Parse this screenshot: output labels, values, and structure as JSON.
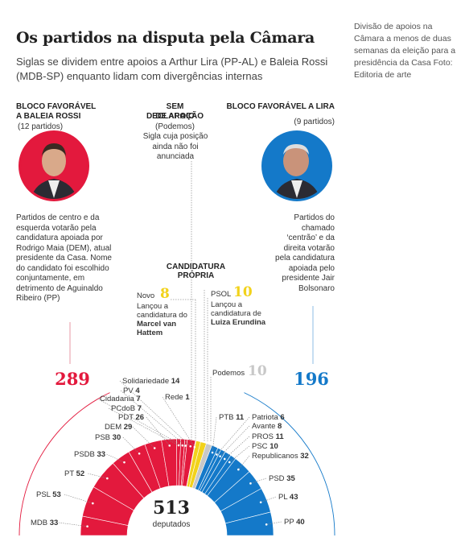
{
  "title": "Os partidos na disputa pela Câmara",
  "subtitle": "Siglas se dividem entre apoios a Arthur Lira (PP-AL) e Baleia Rossi (MDB-SP) enquanto lidam com divergências internas",
  "caption": "Divisão de apoios na Câmara a menos de duas semanas da eleição para a presidência da Casa Foto: Editoria de arte",
  "blocs": {
    "rossi": {
      "heading_line1": "BLOCO FAVORÁVEL",
      "heading_line2": "A BALEIA ROSSI",
      "parties": "(12 partidos)",
      "description": "Partidos de centro e da esquerda votarão pela candidatura apoiada por Rodrigo Maia (DEM), atual presidente da Casa. Nome do candidato foi escolhido conjuntamente, em detrimento de Aguinaldo Ribeiro (PP)",
      "total": "289",
      "color": "#e3193d"
    },
    "none": {
      "heading_line1": "SEM DECLARAÇÃO",
      "heading_line2": "DE APOIO",
      "party": "(Podemos)",
      "description": "Sigla cuja posição ainda não foi anunciada"
    },
    "lira": {
      "heading": "BLOCO FAVORÁVEL A LIRA",
      "parties": "(9 partidos)",
      "description": "Partidos do chamado ‘centrão’ e da direita votarão pela candidatura apoiada pelo presidente Jair Bolsonaro",
      "total": "196",
      "color": "#1479c9"
    },
    "own": {
      "heading_line1": "CANDIDATURA",
      "heading_line2": "PRÓPRIA",
      "novo_name": "Novo",
      "novo_seats": "8",
      "novo_text1": "Lançou a",
      "novo_text2": "candidatura do",
      "novo_text3": "Marcel van",
      "novo_text4": "Hattem",
      "psol_name": "PSOL",
      "psol_seats": "10",
      "psol_text1": "Lançou a",
      "psol_text2": "candidatura de",
      "psol_text3": "Luiza Erundina",
      "color": "#f2d21b"
    },
    "podemos": {
      "name": "Podemos",
      "seats": "10",
      "color": "#c8c8c8"
    }
  },
  "center": {
    "total": "513",
    "label": "deputados"
  },
  "chart_data": {
    "type": "pie",
    "variant": "parliament-semicircle",
    "total": 513,
    "segments": [
      {
        "party": "MDB",
        "seats": 33,
        "group": "rossi"
      },
      {
        "party": "PSL",
        "seats": 53,
        "group": "rossi"
      },
      {
        "party": "PT",
        "seats": 52,
        "group": "rossi"
      },
      {
        "party": "PSDB",
        "seats": 33,
        "group": "rossi"
      },
      {
        "party": "PSB",
        "seats": 30,
        "group": "rossi"
      },
      {
        "party": "DEM",
        "seats": 29,
        "group": "rossi"
      },
      {
        "party": "PDT",
        "seats": 26,
        "group": "rossi"
      },
      {
        "party": "PCdoB",
        "seats": 7,
        "group": "rossi"
      },
      {
        "party": "Cidadania",
        "seats": 7,
        "group": "rossi"
      },
      {
        "party": "PV",
        "seats": 4,
        "group": "rossi"
      },
      {
        "party": "Solidariedade",
        "seats": 14,
        "group": "rossi"
      },
      {
        "party": "Rede",
        "seats": 1,
        "group": "rossi"
      },
      {
        "party": "Novo",
        "seats": 8,
        "group": "own"
      },
      {
        "party": "PSOL",
        "seats": 10,
        "group": "own"
      },
      {
        "party": "Podemos",
        "seats": 10,
        "group": "none"
      },
      {
        "party": "PTB",
        "seats": 11,
        "group": "lira"
      },
      {
        "party": "Patriota",
        "seats": 6,
        "group": "lira"
      },
      {
        "party": "Avante",
        "seats": 8,
        "group": "lira"
      },
      {
        "party": "PROS",
        "seats": 11,
        "group": "lira"
      },
      {
        "party": "PSC",
        "seats": 10,
        "group": "lira"
      },
      {
        "party": "Republicanos",
        "seats": 32,
        "group": "lira"
      },
      {
        "party": "PSD",
        "seats": 35,
        "group": "lira"
      },
      {
        "party": "PL",
        "seats": 43,
        "group": "lira"
      },
      {
        "party": "PP",
        "seats": 40,
        "group": "lira"
      }
    ]
  }
}
